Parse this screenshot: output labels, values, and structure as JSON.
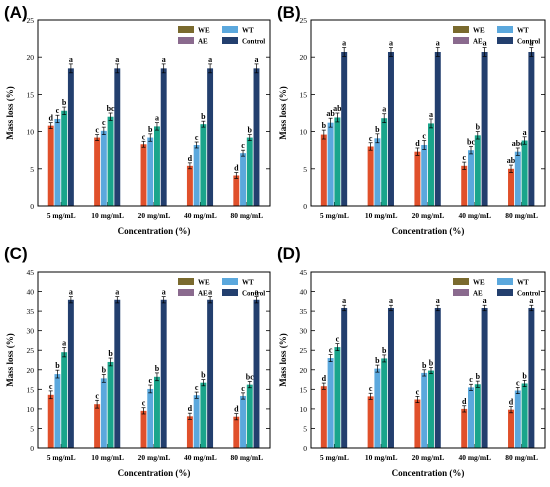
{
  "figure": {
    "legend": [
      "WE",
      "WT",
      "AE",
      "Control"
    ],
    "colors": {
      "WE": "#e0502b",
      "WT": "#5ba8dd",
      "AE": "#1aa58b",
      "Control": "#233f6e"
    },
    "legend_swatches": {
      "WE": "#7a6a2e",
      "WT": "#5ba8dd",
      "AE": "#8a6a8e",
      "Control": "#233f6e"
    }
  },
  "chart_data": [
    {
      "panel": "(A)",
      "type": "bar",
      "categories": [
        "5 mg/mL",
        "10 mg/mL",
        "20 mg/mL",
        "40 mg/mL",
        "80 mg/mL"
      ],
      "xlabel": "Concentration (%)",
      "ylabel": "Mass loss (%)",
      "ylim": [
        0,
        25
      ],
      "yticks": [
        0,
        5,
        10,
        15,
        20,
        25
      ],
      "series": [
        {
          "name": "WE",
          "values": [
            10.8,
            9.2,
            8.3,
            5.4,
            4.1
          ],
          "errors": [
            0.4,
            0.4,
            0.4,
            0.4,
            0.4
          ],
          "letters": [
            "d",
            "c",
            "c",
            "d",
            "d"
          ]
        },
        {
          "name": "WT",
          "values": [
            11.7,
            10.1,
            9.2,
            8.2,
            7.1
          ],
          "errors": [
            0.5,
            0.5,
            0.5,
            0.4,
            0.4
          ],
          "letters": [
            "c",
            "c",
            "b",
            "c",
            "c"
          ]
        },
        {
          "name": "AE",
          "values": [
            12.8,
            12.0,
            10.7,
            11.0,
            9.2
          ],
          "errors": [
            0.5,
            0.5,
            0.5,
            0.4,
            0.4
          ],
          "letters": [
            "b",
            "bc",
            "a",
            "b",
            "b"
          ]
        },
        {
          "name": "Control",
          "values": [
            18.5,
            18.5,
            18.5,
            18.5,
            18.5
          ],
          "errors": [
            0.6,
            0.6,
            0.6,
            0.6,
            0.6
          ],
          "letters": [
            "a",
            "a",
            "a",
            "a",
            "a"
          ]
        }
      ]
    },
    {
      "panel": "(B)",
      "type": "bar",
      "categories": [
        "5 mg/mL",
        "10 mg/mL",
        "20 mg/mL",
        "40 mg/mL",
        "80 mg/mL"
      ],
      "xlabel": "Concentration (%)",
      "ylabel": "Mass loss (%)",
      "ylim": [
        0,
        25
      ],
      "yticks": [
        0,
        5,
        10,
        15,
        20,
        25
      ],
      "series": [
        {
          "name": "WE",
          "values": [
            9.6,
            8.0,
            7.3,
            5.4,
            5.0
          ],
          "errors": [
            0.6,
            0.5,
            0.5,
            0.5,
            0.5
          ],
          "letters": [
            "b",
            "c",
            "d",
            "c",
            "ab"
          ]
        },
        {
          "name": "WT",
          "values": [
            11.2,
            9.1,
            8.2,
            7.5,
            7.3
          ],
          "errors": [
            0.6,
            0.6,
            0.6,
            0.5,
            0.5
          ],
          "letters": [
            "ab",
            "b",
            "c",
            "bc",
            "abc"
          ]
        },
        {
          "name": "AE",
          "values": [
            11.9,
            11.8,
            11.1,
            9.5,
            8.8
          ],
          "errors": [
            0.6,
            0.6,
            0.6,
            0.5,
            0.5
          ],
          "letters": [
            "ab",
            "a",
            "a",
            "b",
            "a"
          ]
        },
        {
          "name": "Control",
          "values": [
            20.7,
            20.7,
            20.7,
            20.7,
            20.7
          ],
          "errors": [
            0.6,
            0.6,
            0.6,
            0.6,
            0.6
          ],
          "letters": [
            "a",
            "a",
            "a",
            "a",
            "a"
          ]
        }
      ]
    },
    {
      "panel": "(C)",
      "type": "bar",
      "categories": [
        "5 mg/mL",
        "10 mg/mL",
        "20 mg/mL",
        "40 mg/mL",
        "80 mg/mL"
      ],
      "xlabel": "Concentration (%)",
      "ylabel": "Mass loss (%)",
      "ylim": [
        0,
        45
      ],
      "yticks": [
        0,
        5,
        10,
        15,
        20,
        25,
        30,
        35,
        40,
        45
      ],
      "series": [
        {
          "name": "WE",
          "values": [
            13.6,
            11.2,
            9.5,
            8.1,
            8.0
          ],
          "errors": [
            1.0,
            1.0,
            0.8,
            0.8,
            0.8
          ],
          "letters": [
            "c",
            "c",
            "c",
            "d",
            "d"
          ]
        },
        {
          "name": "WT",
          "values": [
            18.9,
            17.8,
            15.1,
            13.5,
            13.3
          ],
          "errors": [
            1.0,
            1.0,
            1.0,
            0.8,
            0.8
          ],
          "letters": [
            "b",
            "b",
            "c",
            "c",
            "c"
          ]
        },
        {
          "name": "AE",
          "values": [
            24.5,
            22.0,
            18.2,
            16.7,
            16.2
          ],
          "errors": [
            1.2,
            1.0,
            1.0,
            0.8,
            0.8
          ],
          "letters": [
            "a",
            "b",
            "b",
            "b",
            "bc"
          ]
        },
        {
          "name": "Control",
          "values": [
            37.9,
            37.9,
            37.9,
            37.9,
            37.9
          ],
          "errors": [
            0.8,
            0.8,
            0.8,
            0.8,
            0.8
          ],
          "letters": [
            "a",
            "a",
            "a",
            "a",
            "a"
          ]
        }
      ]
    },
    {
      "panel": "(D)",
      "type": "bar",
      "categories": [
        "5 mg/mL",
        "10 mg/mL",
        "20 mg/mL",
        "40 mg/mL",
        "80 mg/mL"
      ],
      "xlabel": "Concentration (%)",
      "ylabel": "Mass loss (%)",
      "ylim": [
        0,
        45
      ],
      "yticks": [
        0,
        5,
        10,
        15,
        20,
        25,
        30,
        35,
        40,
        45
      ],
      "series": [
        {
          "name": "WE",
          "values": [
            15.8,
            13.2,
            12.4,
            10.0,
            9.8
          ],
          "errors": [
            0.8,
            0.8,
            0.8,
            0.8,
            0.8
          ],
          "letters": [
            "d",
            "c",
            "c",
            "d",
            "d"
          ]
        },
        {
          "name": "WT",
          "values": [
            23.0,
            20.3,
            19.2,
            15.5,
            14.7
          ],
          "errors": [
            0.9,
            0.9,
            0.8,
            0.8,
            0.8
          ],
          "letters": [
            "c",
            "b",
            "b",
            "c",
            "c"
          ]
        },
        {
          "name": "AE",
          "values": [
            25.8,
            22.9,
            19.8,
            16.3,
            16.5
          ],
          "errors": [
            0.9,
            0.9,
            0.8,
            0.8,
            0.8
          ],
          "letters": [
            "c",
            "b",
            "b",
            "b",
            "b"
          ]
        },
        {
          "name": "Control",
          "values": [
            35.8,
            35.8,
            35.8,
            35.8,
            35.8
          ],
          "errors": [
            0.7,
            0.7,
            0.7,
            0.7,
            0.7
          ],
          "letters": [
            "a",
            "a",
            "a",
            "a",
            "a"
          ]
        }
      ]
    }
  ]
}
